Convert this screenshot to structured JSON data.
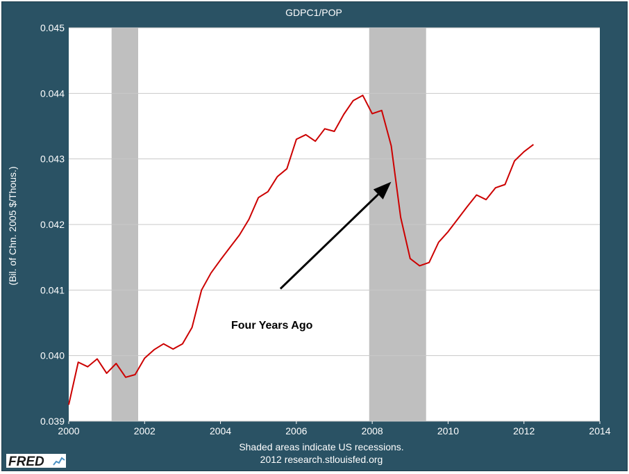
{
  "chart_data": {
    "type": "line",
    "title": "GDPC1/POP",
    "ylabel": "(Bil. of Chn. 2005 $/Thous.)",
    "xlabel": "",
    "xlim": [
      2000,
      2014
    ],
    "ylim": [
      0.039,
      0.045
    ],
    "x_ticks": [
      "2000",
      "2002",
      "2004",
      "2006",
      "2008",
      "2010",
      "2012",
      "2014"
    ],
    "y_ticks": [
      "0.039",
      "0.040",
      "0.041",
      "0.042",
      "0.043",
      "0.044",
      "0.045"
    ],
    "grid": true,
    "recessions": [
      [
        2001.13,
        2001.83
      ],
      [
        2007.92,
        2009.42
      ]
    ],
    "annotation": {
      "text": "Four Years Ago",
      "arrow_from": [
        2005.58,
        0.04102
      ],
      "arrow_to": [
        2008.5,
        0.04265
      ]
    },
    "series": [
      {
        "name": "",
        "color": "#cc0000",
        "x": [
          2000.0,
          2000.25,
          2000.5,
          2000.75,
          2001.0,
          2001.25,
          2001.5,
          2001.75,
          2002.0,
          2002.25,
          2002.5,
          2002.75,
          2003.0,
          2003.25,
          2003.5,
          2003.75,
          2004.0,
          2004.25,
          2004.5,
          2004.75,
          2005.0,
          2005.25,
          2005.5,
          2005.75,
          2006.0,
          2006.25,
          2006.5,
          2006.75,
          2007.0,
          2007.25,
          2007.5,
          2007.75,
          2008.0,
          2008.25,
          2008.5,
          2008.75,
          2009.0,
          2009.25,
          2009.5,
          2009.75,
          2010.0,
          2010.25,
          2010.5,
          2010.75,
          2011.0,
          2011.25,
          2011.5,
          2011.75,
          2012.0,
          2012.25
        ],
        "values": [
          0.03925,
          0.0399,
          0.03983,
          0.03995,
          0.03973,
          0.03988,
          0.03967,
          0.03971,
          0.03996,
          0.04009,
          0.04018,
          0.0401,
          0.04018,
          0.04043,
          0.041,
          0.04126,
          0.04146,
          0.04165,
          0.04184,
          0.04208,
          0.04241,
          0.0425,
          0.04273,
          0.04285,
          0.0433,
          0.04337,
          0.04327,
          0.04346,
          0.04342,
          0.04368,
          0.04389,
          0.04397,
          0.04369,
          0.04374,
          0.0432,
          0.04211,
          0.04148,
          0.04137,
          0.04142,
          0.04173,
          0.04189,
          0.04208,
          0.04227,
          0.04245,
          0.04238,
          0.04256,
          0.04261,
          0.04297,
          0.04311,
          0.04322
        ]
      }
    ]
  },
  "footer": {
    "line1": "Shaded areas indicate US recessions.",
    "line2": "2012 research.stlouisfed.org"
  },
  "logo": {
    "text": "FRED"
  }
}
